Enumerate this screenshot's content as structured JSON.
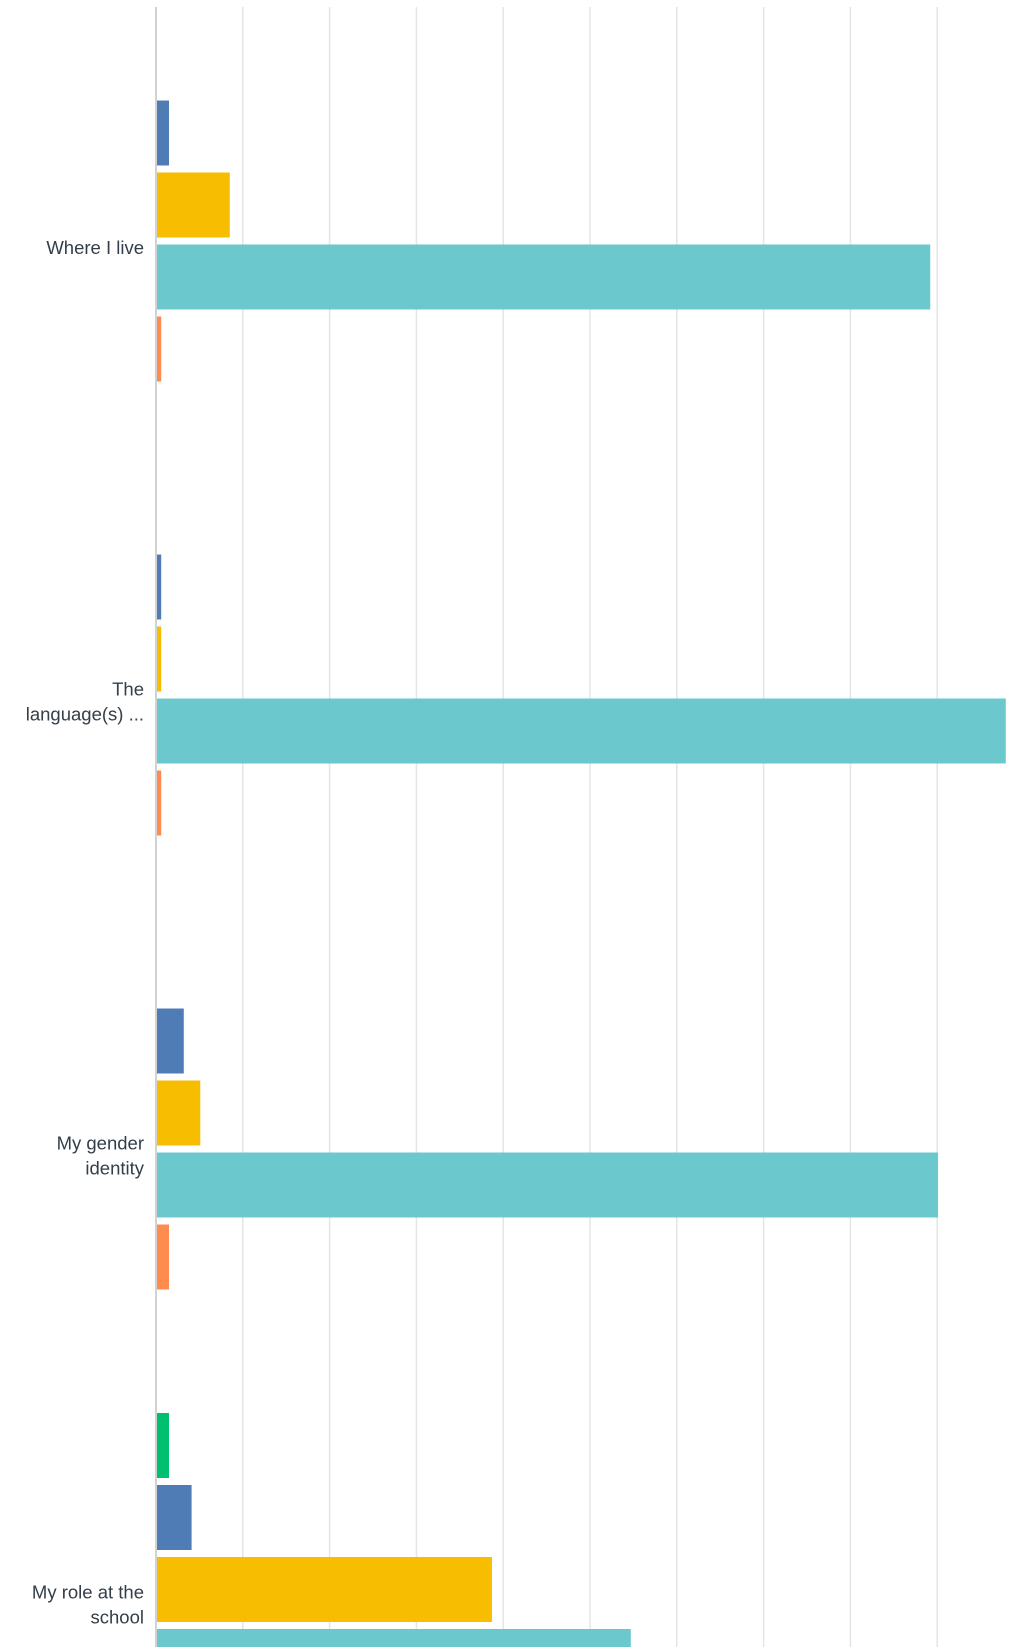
{
  "chart_data": {
    "type": "bar",
    "orientation": "horizontal",
    "categories": [
      [
        "Where I live"
      ],
      [
        "The",
        "language(s) ..."
      ],
      [
        "My gender",
        "identity"
      ],
      [
        "My role at the",
        "school"
      ]
    ],
    "series": [
      {
        "color": "#00bf6f",
        "values": [
          0,
          0,
          0,
          1.5
        ]
      },
      {
        "color": "#507cb6",
        "values": [
          1.5,
          0.6,
          3.2,
          4.1
        ]
      },
      {
        "color": "#f6bd01",
        "values": [
          8.5,
          0.6,
          5.1,
          38.7
        ]
      },
      {
        "color": "#6bc8cd",
        "values": [
          89.2,
          97.9,
          90.1,
          54.7
        ]
      },
      {
        "color": "#ff8b4f",
        "values": [
          0.6,
          0.6,
          1.5,
          0
        ]
      }
    ],
    "xlim": [
      0,
      100
    ],
    "gridlines": true,
    "gridline_step": 10,
    "gridline_color": "#e5e5e5",
    "axis_color": "#d0d2d3",
    "label_color": "#333e48",
    "legend": "none"
  }
}
